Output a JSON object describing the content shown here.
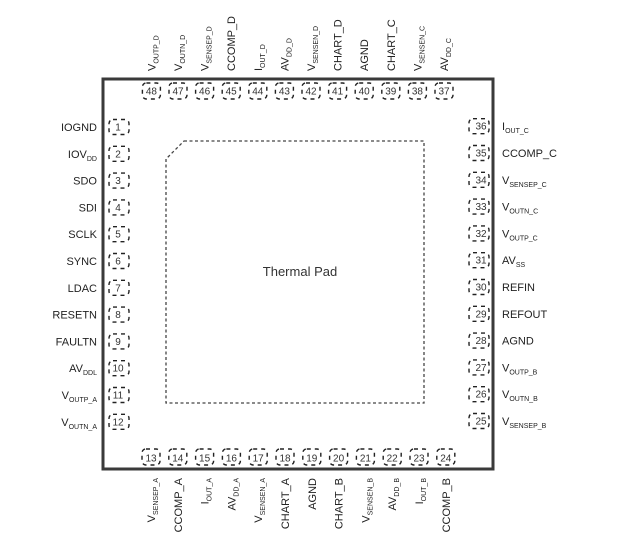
{
  "thermal_pad_label": "Thermal Pad",
  "colors": {
    "outline": "#3a3a3a",
    "text": "#222222"
  },
  "pins": {
    "left": [
      {
        "num": "1",
        "name": "IOGND",
        "sub": ""
      },
      {
        "num": "2",
        "name": "IOV",
        "sub": "DD"
      },
      {
        "num": "3",
        "name": "SDO",
        "sub": ""
      },
      {
        "num": "4",
        "name": "SDI",
        "sub": ""
      },
      {
        "num": "5",
        "name": "SCLK",
        "sub": ""
      },
      {
        "num": "6",
        "name": "SYNC",
        "sub": ""
      },
      {
        "num": "7",
        "name": "LDAC",
        "sub": ""
      },
      {
        "num": "8",
        "name": "RESETN",
        "sub": ""
      },
      {
        "num": "9",
        "name": "FAULTN",
        "sub": ""
      },
      {
        "num": "10",
        "name": "AV",
        "sub": "DDL"
      },
      {
        "num": "11",
        "name": "V",
        "sub": "OUTP_A"
      },
      {
        "num": "12",
        "name": "V",
        "sub": "OUTN_A"
      }
    ],
    "bottom": [
      {
        "num": "13",
        "name": "V",
        "sub": "SENSEP_A"
      },
      {
        "num": "14",
        "name": "CCOMP_A",
        "sub": ""
      },
      {
        "num": "15",
        "name": "I",
        "sub": "OUT_A"
      },
      {
        "num": "16",
        "name": "AV",
        "sub": "DD_A"
      },
      {
        "num": "17",
        "name": "V",
        "sub": "SENSEN_A"
      },
      {
        "num": "18",
        "name": "CHART_A",
        "sub": ""
      },
      {
        "num": "19",
        "name": "AGND",
        "sub": ""
      },
      {
        "num": "20",
        "name": "CHART_B",
        "sub": ""
      },
      {
        "num": "21",
        "name": "V",
        "sub": "SENSEN_B"
      },
      {
        "num": "22",
        "name": "AV",
        "sub": "DD_B"
      },
      {
        "num": "23",
        "name": "I",
        "sub": "OUT_B"
      },
      {
        "num": "24",
        "name": "CCOMP_B",
        "sub": ""
      }
    ],
    "right": [
      {
        "num": "25",
        "name": "V",
        "sub": "SENSEP_B"
      },
      {
        "num": "26",
        "name": "V",
        "sub": "OUTN_B"
      },
      {
        "num": "27",
        "name": "V",
        "sub": "OUTP_B"
      },
      {
        "num": "28",
        "name": "AGND",
        "sub": ""
      },
      {
        "num": "29",
        "name": "REFOUT",
        "sub": ""
      },
      {
        "num": "30",
        "name": "REFIN",
        "sub": ""
      },
      {
        "num": "31",
        "name": "AV",
        "sub": "SS"
      },
      {
        "num": "32",
        "name": "V",
        "sub": "OUTP_C"
      },
      {
        "num": "33",
        "name": "V",
        "sub": "OUTN_C"
      },
      {
        "num": "34",
        "name": "V",
        "sub": "SENSEP_C"
      },
      {
        "num": "35",
        "name": "CCOMP_C",
        "sub": ""
      },
      {
        "num": "36",
        "name": "I",
        "sub": "OUT_C"
      }
    ],
    "top": [
      {
        "num": "37",
        "name": "AV",
        "sub": "DD_C"
      },
      {
        "num": "38",
        "name": "V",
        "sub": "SENSEN_C"
      },
      {
        "num": "39",
        "name": "CHART_C",
        "sub": ""
      },
      {
        "num": "40",
        "name": "AGND",
        "sub": ""
      },
      {
        "num": "41",
        "name": "CHART_D",
        "sub": ""
      },
      {
        "num": "42",
        "name": "V",
        "sub": "SENSEN_D"
      },
      {
        "num": "43",
        "name": "AV",
        "sub": "DD_D"
      },
      {
        "num": "44",
        "name": "I",
        "sub": "OUT_D"
      },
      {
        "num": "45",
        "name": "CCOMP_D",
        "sub": ""
      },
      {
        "num": "46",
        "name": "V",
        "sub": "SENSEP_D"
      },
      {
        "num": "47",
        "name": "V",
        "sub": "OUTN_D"
      },
      {
        "num": "48",
        "name": "V",
        "sub": "OUTP_D"
      }
    ]
  }
}
